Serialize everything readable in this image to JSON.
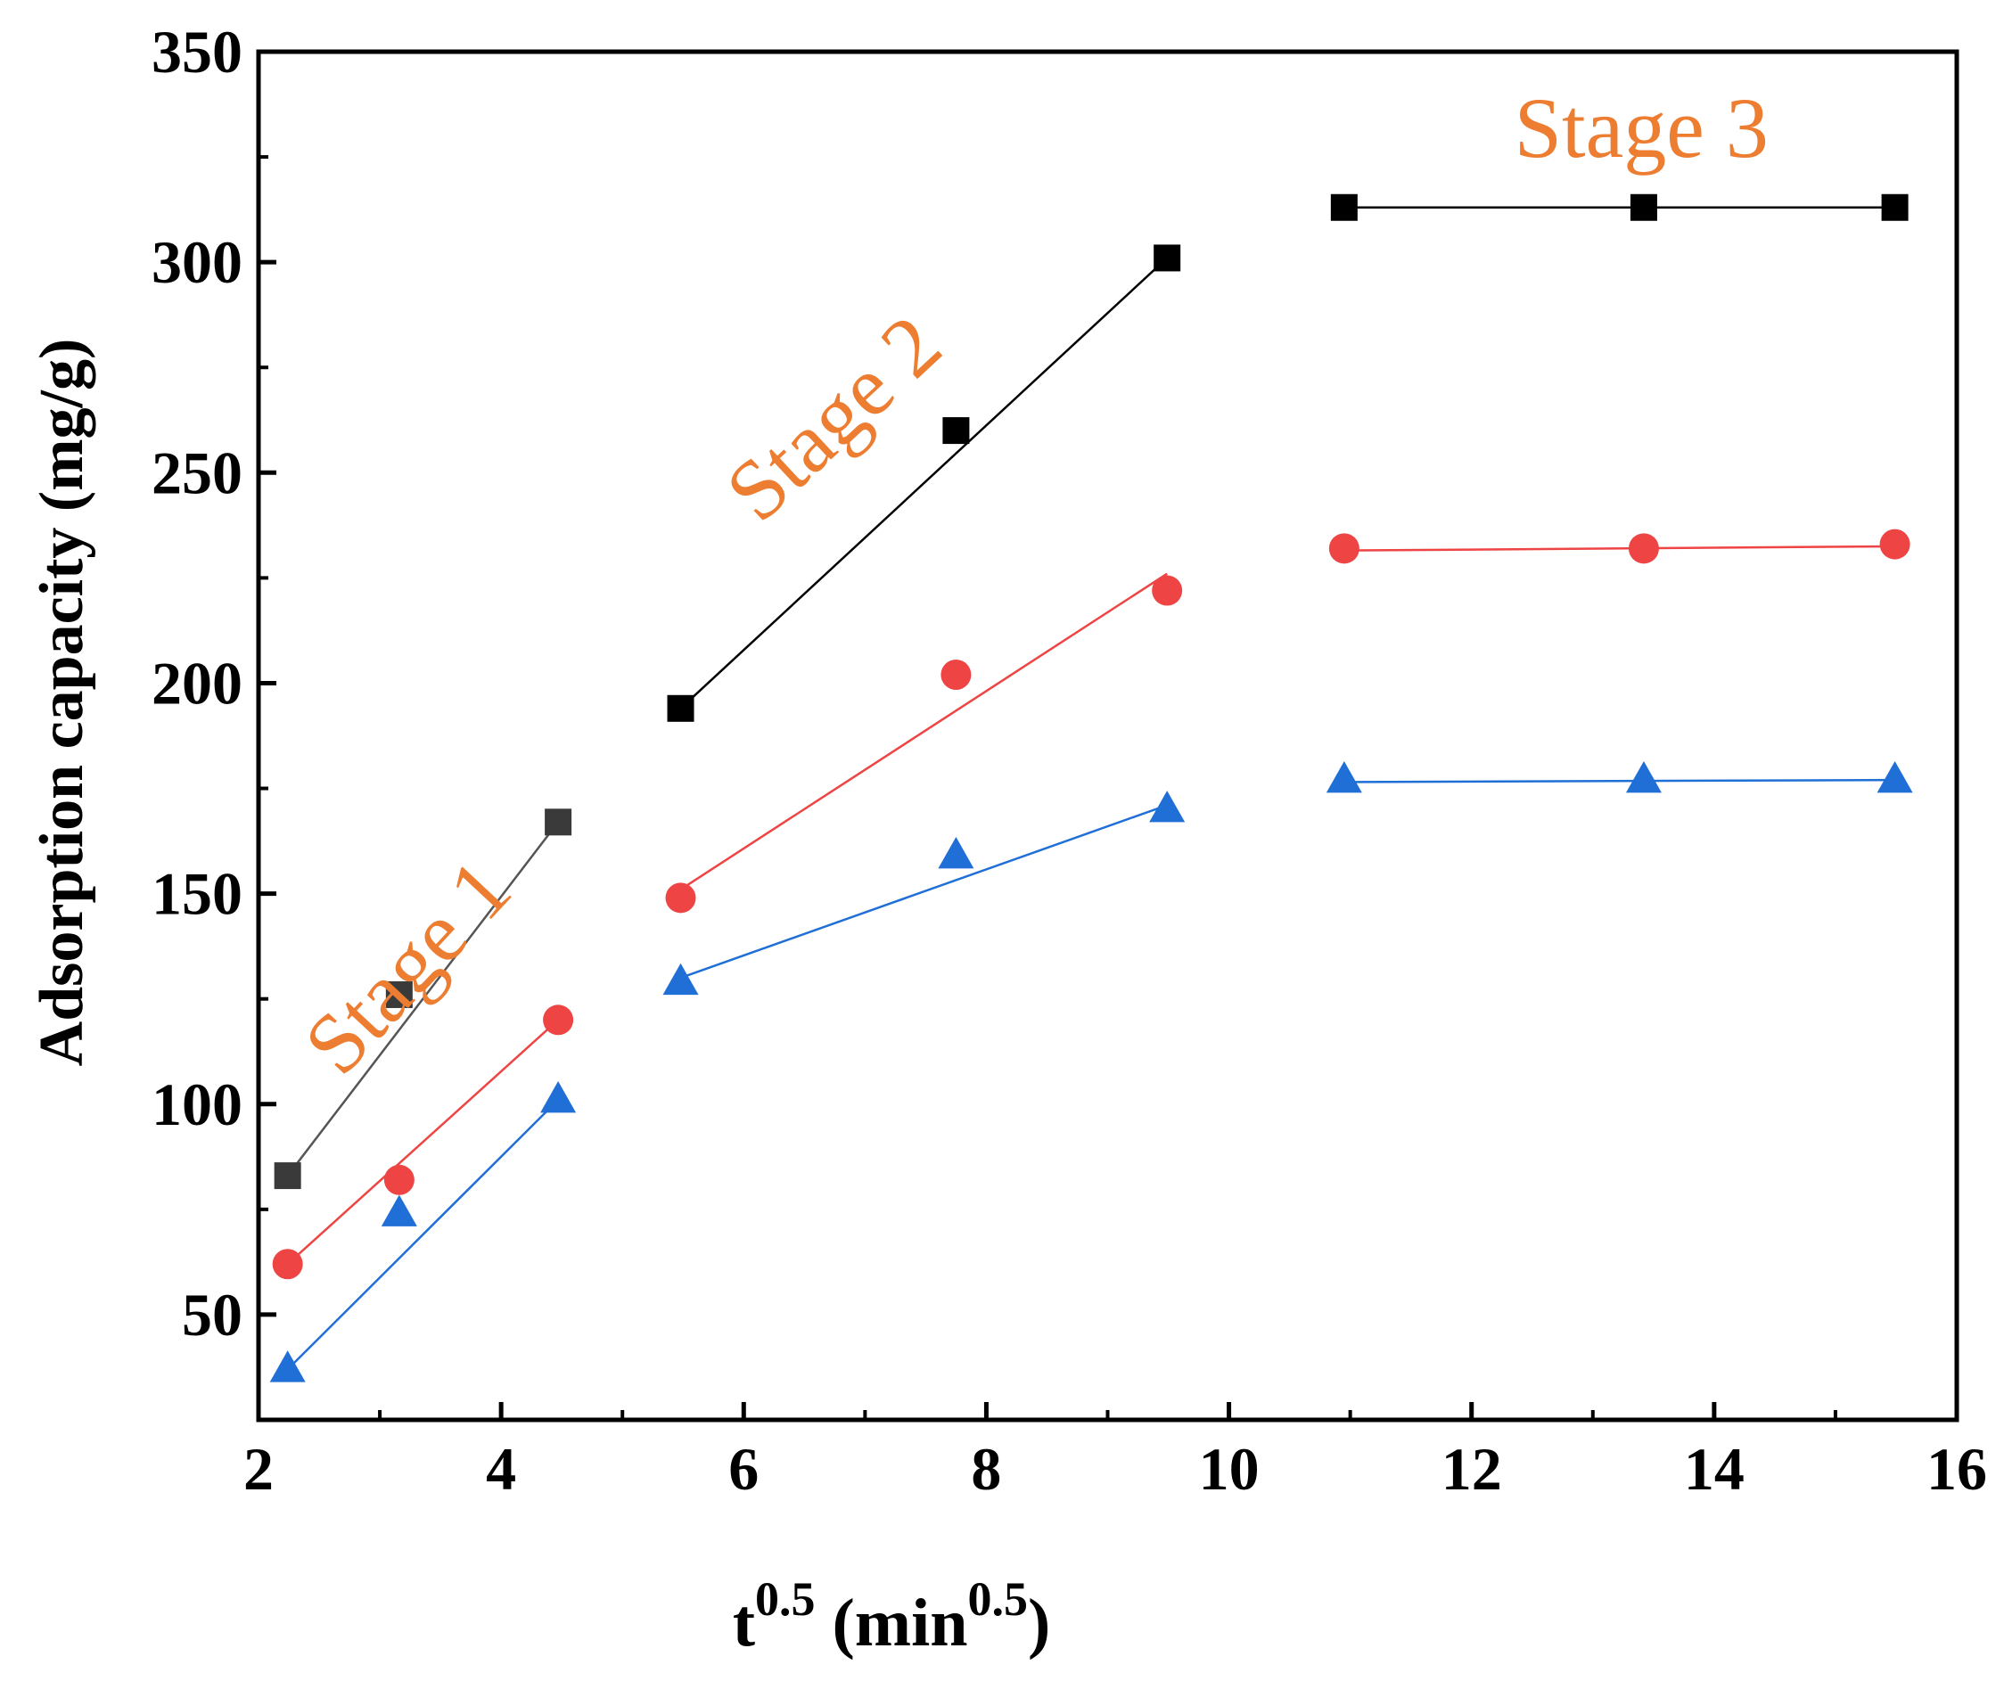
{
  "chart_data": {
    "type": "scatter",
    "xlabel": {
      "base": "t",
      "sup": "0.5",
      "unit_open": " (min",
      "unit_sup": "0.5",
      "unit_close": ")"
    },
    "ylabel": "Adsorption capacity (mg/g)",
    "xlim": [
      2,
      16
    ],
    "ylim": [
      25,
      350
    ],
    "xticks": [
      2,
      4,
      6,
      8,
      10,
      12,
      14,
      16
    ],
    "yticks": [
      50,
      100,
      150,
      200,
      250,
      300,
      350
    ],
    "x_minor_step": 1,
    "y_minor_step": 25,
    "grid": false,
    "legend": "none",
    "series": [
      {
        "name": "square",
        "marker": "square",
        "color": "#000000",
        "x": [
          2.24,
          3.16,
          4.47,
          5.48,
          7.75,
          9.49,
          10.95,
          13.42,
          15.49
        ],
        "y": [
          83,
          126,
          167,
          194,
          260,
          301,
          313,
          313,
          313
        ],
        "fits": [
          {
            "x": [
              2.24,
              4.47
            ],
            "y": [
              83,
              167
            ],
            "color": "#555555"
          },
          {
            "x": [
              5.48,
              9.49
            ],
            "y": [
              194,
              301
            ],
            "color": "#000000"
          },
          {
            "x": [
              10.95,
              15.49
            ],
            "y": [
              313,
              313
            ],
            "color": "#000000"
          }
        ]
      },
      {
        "name": "circle",
        "marker": "circle",
        "color": "#ee4444",
        "x": [
          2.24,
          3.16,
          4.47,
          5.48,
          7.75,
          9.49,
          10.95,
          13.42,
          15.49
        ],
        "y": [
          62,
          82,
          120,
          149,
          202,
          222,
          232,
          232,
          233
        ],
        "fits": [
          {
            "x": [
              2.24,
              4.47
            ],
            "y": [
              62,
              120
            ],
            "color": "#ee4444"
          },
          {
            "x": [
              5.48,
              9.49
            ],
            "y": [
              151,
              226
            ],
            "color": "#ee4444"
          },
          {
            "x": [
              10.95,
              15.49
            ],
            "y": [
              231.5,
              232.5
            ],
            "color": "#ee4444"
          }
        ]
      },
      {
        "name": "triangle",
        "marker": "triangle",
        "color": "#1f6fd6",
        "x": [
          2.24,
          3.16,
          4.47,
          5.48,
          7.75,
          9.49,
          10.95,
          13.42,
          15.49
        ],
        "y": [
          37,
          74,
          101,
          129,
          159,
          170,
          177,
          177,
          177
        ],
        "fits": [
          {
            "x": [
              2.24,
              4.47
            ],
            "y": [
              37,
              101
            ],
            "color": "#1f6fd6"
          },
          {
            "x": [
              5.48,
              9.49
            ],
            "y": [
              130,
              171
            ],
            "color": "#1f6fd6"
          },
          {
            "x": [
              10.95,
              15.49
            ],
            "y": [
              176.5,
              177
            ],
            "color": "#1f6fd6"
          }
        ]
      }
    ],
    "annotations": [
      {
        "text": "Stage 1",
        "x": 3.4,
        "y": 128,
        "rotation": -47,
        "color": "#ed7d31"
      },
      {
        "text": "Stage 2",
        "x": 6.9,
        "y": 258,
        "rotation": -43,
        "color": "#ed7d31"
      },
      {
        "text": "Stage 3",
        "x": 13.4,
        "y": 325,
        "rotation": 0,
        "color": "#ed7d31"
      }
    ]
  }
}
